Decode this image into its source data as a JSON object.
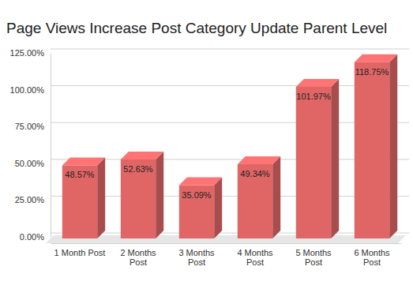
{
  "chart_data": {
    "type": "bar",
    "title": "Page Views Increase Post Category Update Parent Level",
    "categories": [
      "1 Month Post",
      "2 Months Post",
      "3 Months Post",
      "4 Months Post",
      "5 Months Post",
      "6 Months Post"
    ],
    "values": [
      48.57,
      52.63,
      35.09,
      49.34,
      101.97,
      118.75
    ],
    "value_labels": [
      "48.57%",
      "52.63%",
      "35.09%",
      "49.34%",
      "101.97%",
      "118.75%"
    ],
    "color": "#e06666",
    "ylim": [
      0,
      125
    ],
    "yticks": [
      {
        "value": 0,
        "label": "0.00%"
      },
      {
        "value": 25,
        "label": "25.00%"
      },
      {
        "value": 50,
        "label": "50.00%"
      },
      {
        "value": 75,
        "label": "75.00%"
      },
      {
        "value": 100,
        "label": "100.00%"
      },
      {
        "value": 125,
        "label": "125.00%"
      }
    ],
    "grid": true,
    "data_labels": true
  }
}
